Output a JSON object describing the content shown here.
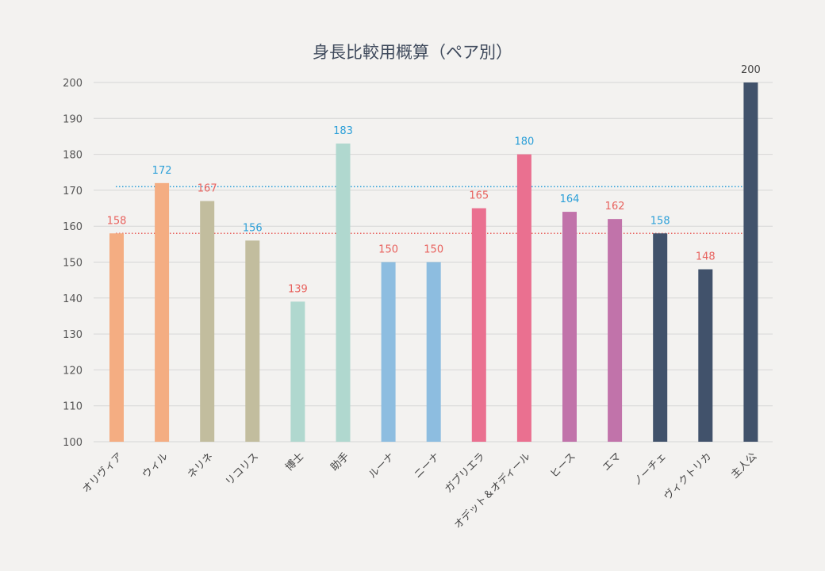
{
  "chart_data": {
    "type": "bar",
    "title": "身長比較用概算（ペア別）",
    "xlabel": "",
    "ylabel": "",
    "ylim": [
      100,
      200
    ],
    "yticks": [
      100,
      110,
      120,
      130,
      140,
      150,
      160,
      170,
      180,
      190,
      200
    ],
    "grid": true,
    "legend": "none",
    "categories": [
      "オリヴィア",
      "ウィル",
      "ネリネ",
      "リコリス",
      "博士",
      "助手",
      "ルーナ",
      "ニーナ",
      "ガブリエラ",
      "オデット＆オディール",
      "ヒース",
      "エマ",
      "ノーチェ",
      "ヴィクトリカ",
      "主人公"
    ],
    "values": [
      158,
      172,
      167,
      156,
      139,
      183,
      150,
      150,
      165,
      180,
      164,
      162,
      158,
      148,
      200
    ],
    "bar_colors": [
      "#f4ad82",
      "#f4ad82",
      "#c2bd9e",
      "#c2bd9e",
      "#b0d8cf",
      "#b0d8cf",
      "#8dbde0",
      "#8dbde0",
      "#ea7090",
      "#ea7090",
      "#c173aa",
      "#c173aa",
      "#41526b",
      "#41526b",
      "#41526b"
    ],
    "label_colors": [
      "#e8625e",
      "#2b9fd8",
      "#e8625e",
      "#2b9fd8",
      "#e8625e",
      "#2b9fd8",
      "#e8625e",
      "#e8625e",
      "#e8625e",
      "#2b9fd8",
      "#2b9fd8",
      "#e8625e",
      "#2b9fd8",
      "#e8625e",
      "#444444"
    ],
    "reference_lines": [
      {
        "value": 171,
        "color": "#2b9fd8",
        "style": "dotted"
      },
      {
        "value": 158,
        "color": "#e8625e",
        "style": "dotted"
      }
    ]
  }
}
